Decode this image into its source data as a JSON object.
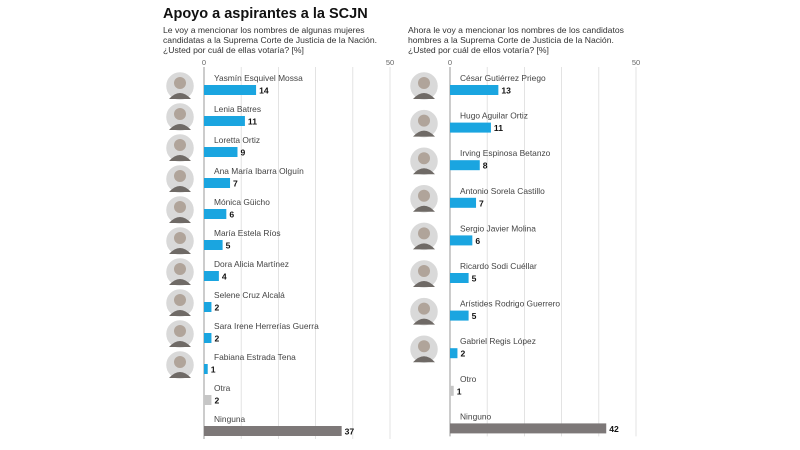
{
  "title": "Apoyo a aspirantes a la SCJN",
  "chart_data": [
    {
      "type": "bar",
      "orientation": "horizontal",
      "subtitle": "Le voy a mencionar los nombres de algunas mujeres candidatas a la Suprema Corte de Justicia de la Nación. ¿Usted por cuál de ellas votaría? [%]",
      "xlim": [
        0,
        50
      ],
      "ticks": [
        "0",
        "50"
      ],
      "grid": true,
      "categories": [
        "Yasmín Esquivel Mossa",
        "Lenia Batres",
        "Loretta Ortiz",
        "Ana María Ibarra Olguín",
        "Mónica Güicho",
        "María Estela Ríos",
        "Dora Alicia Martínez",
        "Selene Cruz Alcalá",
        "Sara Irene Herrerías Guerra",
        "Fabiana Estrada Tena",
        "Otra",
        "Ninguna"
      ],
      "values": [
        14,
        11,
        9,
        7,
        6,
        5,
        4,
        2,
        2,
        1,
        2,
        37
      ],
      "colors": [
        "#1aa5e0",
        "#1aa5e0",
        "#1aa5e0",
        "#1aa5e0",
        "#1aa5e0",
        "#1aa5e0",
        "#1aa5e0",
        "#1aa5e0",
        "#1aa5e0",
        "#1aa5e0",
        "#c6c6c6",
        "#7d7878"
      ],
      "photos": [
        true,
        true,
        true,
        true,
        true,
        true,
        true,
        true,
        true,
        true,
        false,
        false
      ]
    },
    {
      "type": "bar",
      "orientation": "horizontal",
      "subtitle": "Ahora le voy a mencionar los nombres de los candidatos hombres a la Suprema Corte de Justicia de la Nación. ¿Usted por cuál de ellos votaría? [%]",
      "xlim": [
        0,
        50
      ],
      "ticks": [
        "0",
        "50"
      ],
      "grid": true,
      "categories": [
        "César Gutiérrez Priego",
        "Hugo Aguilar Ortiz",
        "Irving Espinosa Betanzo",
        "Antonio Sorela Castillo",
        "Sergio Javier Molina",
        "Ricardo Sodi Cuéllar",
        "Arístides Rodrigo Guerrero",
        "Gabriel Regis López",
        "Otro",
        "Ninguno"
      ],
      "values": [
        13,
        11,
        8,
        7,
        6,
        5,
        5,
        2,
        1,
        42
      ],
      "colors": [
        "#1aa5e0",
        "#1aa5e0",
        "#1aa5e0",
        "#1aa5e0",
        "#1aa5e0",
        "#1aa5e0",
        "#1aa5e0",
        "#1aa5e0",
        "#c6c6c6",
        "#7d7878"
      ],
      "photos": [
        true,
        true,
        true,
        true,
        true,
        true,
        true,
        true,
        false,
        false
      ]
    }
  ]
}
